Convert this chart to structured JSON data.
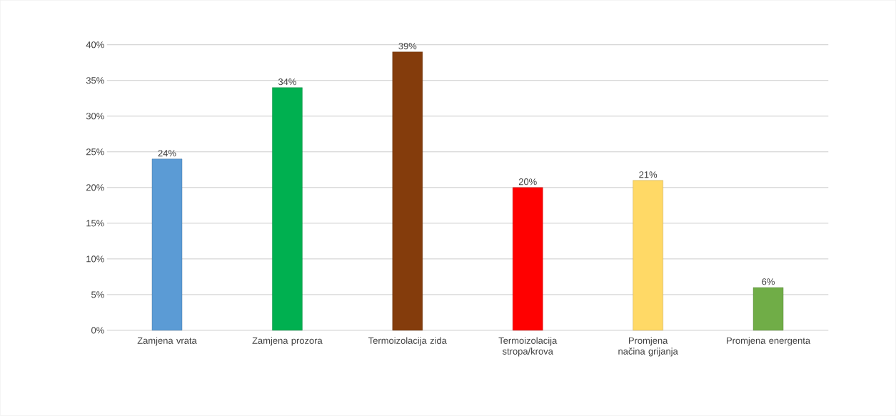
{
  "chart_data": {
    "type": "bar",
    "categories": [
      "Zamjena vrata",
      "Zamjena prozora",
      "Termoizolacija zida",
      "Termoizolacija stropa/krova",
      "Promjena načina grijanja",
      "Promjena energenta"
    ],
    "values": [
      24,
      34,
      39,
      20,
      21,
      6
    ],
    "value_labels": [
      "24%",
      "34%",
      "39%",
      "20%",
      "21%",
      "6%"
    ],
    "colors": [
      "#5b9bd5",
      "#00b050",
      "#843c0c",
      "#ff0000",
      "#ffd966",
      "#70ad47"
    ],
    "ylim": [
      0,
      40
    ],
    "yticks": [
      {
        "value": 0,
        "label": "0%"
      },
      {
        "value": 5,
        "label": "5%"
      },
      {
        "value": 10,
        "label": "10%"
      },
      {
        "value": 15,
        "label": "15%"
      },
      {
        "value": 20,
        "label": "20%"
      },
      {
        "value": 25,
        "label": "25%"
      },
      {
        "value": 30,
        "label": "30%"
      },
      {
        "value": 35,
        "label": "35%"
      },
      {
        "value": 40,
        "label": "40%"
      }
    ],
    "grid": true
  }
}
